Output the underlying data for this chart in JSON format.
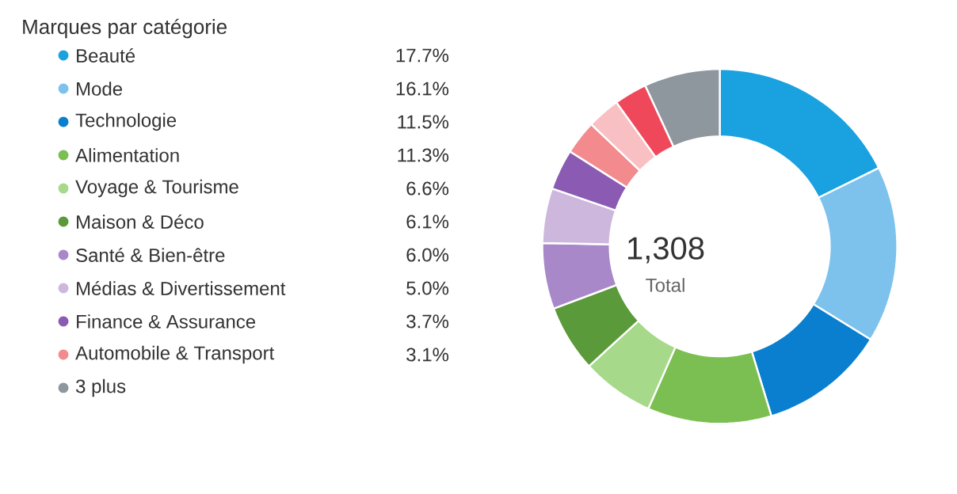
{
  "chart_data": {
    "type": "donut",
    "title": "Marques par catégorie",
    "categories": [
      "Beauté",
      "Mode",
      "Technologie",
      "Alimentation",
      "Voyage & Tourisme",
      "Maison & Déco",
      "Santé & Bien-être",
      "Médias & Divertissement",
      "Finance & Assurance",
      "Automobile & Transport",
      null,
      null,
      "3 plus"
    ],
    "values": [
      17.7,
      16.1,
      11.5,
      11.3,
      6.6,
      6.1,
      6.0,
      5.0,
      3.7,
      3.1,
      3.0,
      3.0,
      6.9
    ],
    "value_labels": [
      "17.7%",
      "16.1%",
      "11.5%",
      "11.3%",
      "6.6%",
      "6.1%",
      "6.0%",
      "5.0%",
      "3.7%",
      "3.1%",
      null,
      null,
      null
    ],
    "colors": [
      "#1aa1e0",
      "#7cc2ec",
      "#0a7fcf",
      "#7bbf52",
      "#a6d98a",
      "#5b9a3a",
      "#a888c9",
      "#cdb7dd",
      "#8b5bb3",
      "#f28a8e",
      "#f9c0c4",
      "#f0485b",
      "#8e979e"
    ],
    "annotations": [
      "1,308",
      "Total"
    ],
    "legend": "left"
  }
}
